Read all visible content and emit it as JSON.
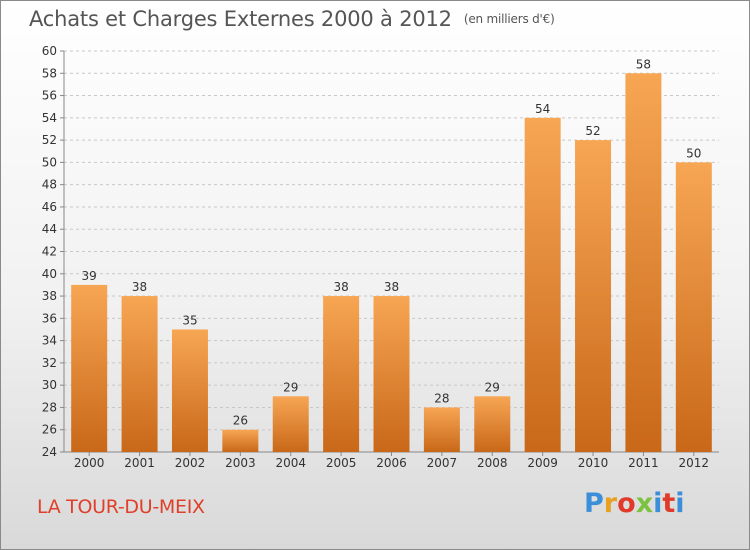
{
  "chart_data": {
    "type": "bar",
    "title": "Achats et Charges Externes 2000 à 2012",
    "subtitle": "(en milliers d'€)",
    "categories": [
      "2000",
      "2001",
      "2002",
      "2003",
      "2004",
      "2005",
      "2006",
      "2007",
      "2008",
      "2009",
      "2010",
      "2011",
      "2012"
    ],
    "values": [
      39,
      38,
      35,
      26,
      29,
      38,
      38,
      28,
      29,
      54,
      52,
      58,
      50
    ],
    "ylim": [
      24,
      60
    ],
    "yticks": [
      24,
      26,
      28,
      30,
      32,
      34,
      36,
      38,
      40,
      42,
      44,
      46,
      48,
      50,
      52,
      54,
      56,
      58,
      60
    ],
    "grid": "horizontal-dashed",
    "bar_color_top": "#f7a654",
    "bar_color_bottom": "#c86818",
    "legend": "none"
  },
  "footer": {
    "place": "LA TOUR-DU-MEIX",
    "brand": "Proxiti",
    "brand_colors": [
      "#3a8fd8",
      "#e8a020",
      "#e03a2a",
      "#7cc241",
      "#3a8fd8",
      "#e03a2a",
      "#3a8fd8"
    ]
  }
}
